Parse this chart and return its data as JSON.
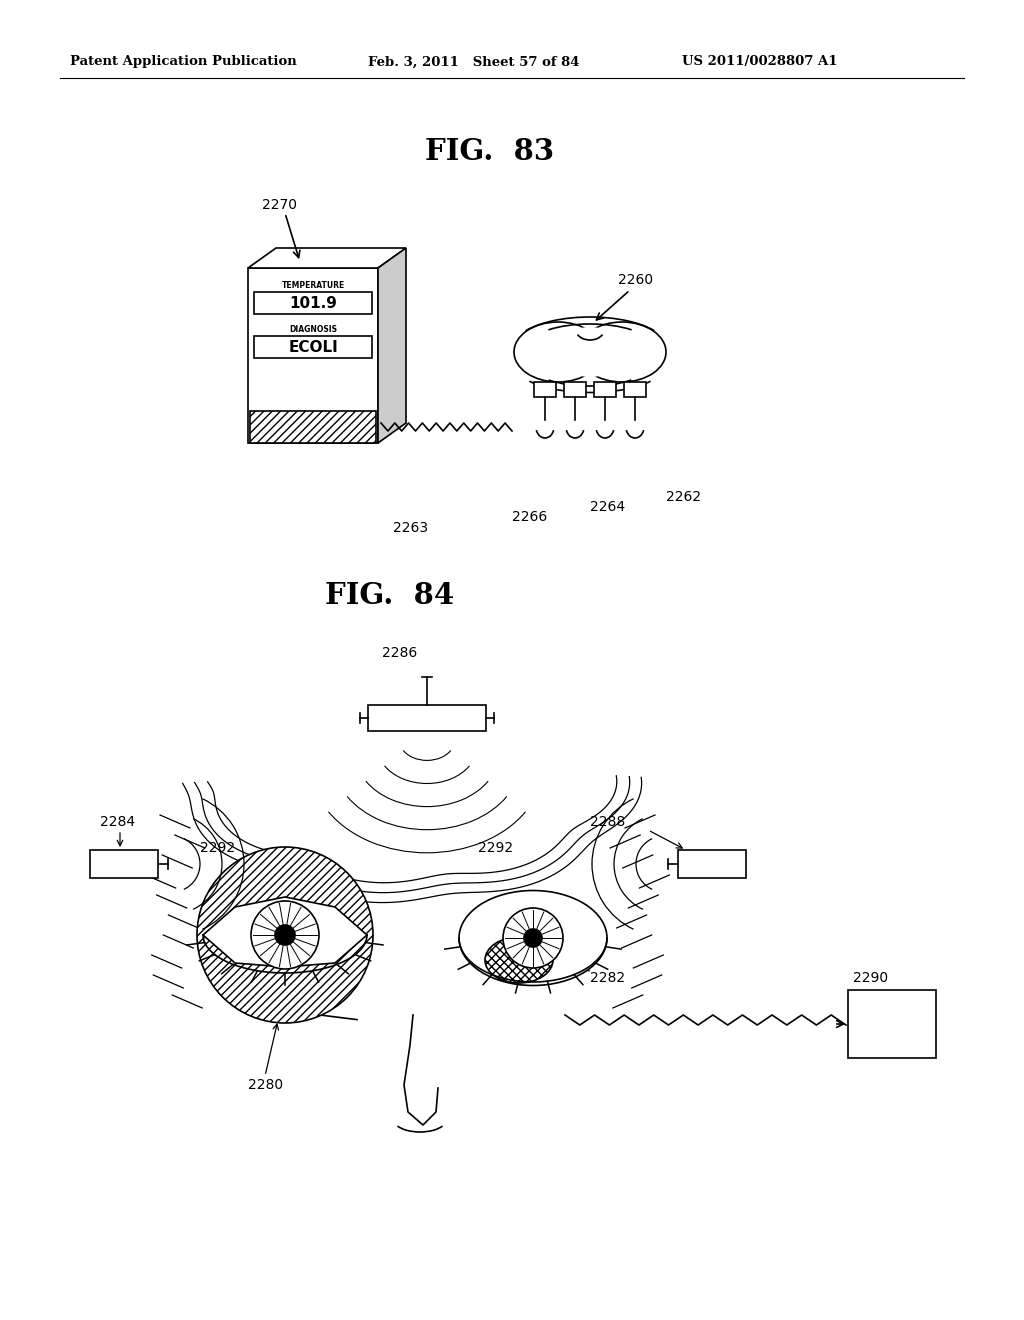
{
  "header_left": "Patent Application Publication",
  "header_mid": "Feb. 3, 2011   Sheet 57 of 84",
  "header_right": "US 2011/0028807 A1",
  "fig83_title": "FIG.  83",
  "fig84_title": "FIG.  84",
  "bg_color": "#ffffff",
  "lc": "#000000",
  "label_2270": "2270",
  "label_2260": "2260",
  "label_2263": "2263",
  "label_2264": "2264",
  "label_2266": "2266",
  "label_2262": "2262",
  "label_2284": "2284",
  "label_2286": "2286",
  "label_2288": "2288",
  "label_2290": "2290",
  "label_2292a": "2292",
  "label_2292b": "2292",
  "label_2280": "2280",
  "label_2282": "2282",
  "temp_text": "TEMPERATURE",
  "temp_val": "101.9",
  "diag_text": "DIAGNOSIS",
  "diag_val": "ECOLI"
}
